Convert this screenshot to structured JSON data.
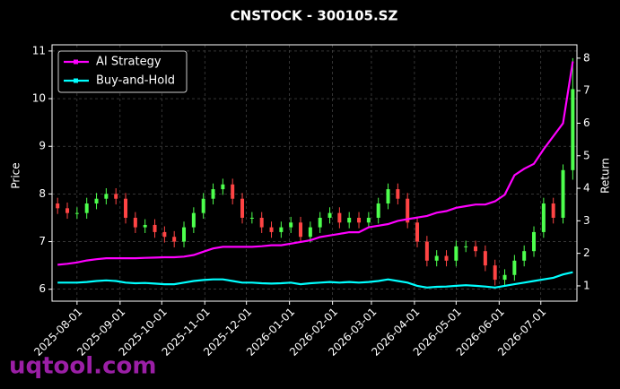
{
  "chart_data": {
    "type": "candlestick_returns",
    "title": "CNSTOCK - 300105.SZ",
    "ylabel": "Price",
    "y2label": "Return",
    "watermark": "uqtool.com",
    "x": [
      "2025-07-18",
      "2025-07-25",
      "2025-08-01",
      "2025-08-08",
      "2025-08-15",
      "2025-08-22",
      "2025-08-29",
      "2025-09-05",
      "2025-09-12",
      "2025-09-19",
      "2025-09-26",
      "2025-10-03",
      "2025-10-10",
      "2025-10-17",
      "2025-10-24",
      "2025-10-31",
      "2025-11-07",
      "2025-11-14",
      "2025-11-21",
      "2025-11-28",
      "2025-12-05",
      "2025-12-12",
      "2025-12-19",
      "2025-12-26",
      "2026-01-02",
      "2026-01-09",
      "2026-01-16",
      "2026-01-23",
      "2026-01-30",
      "2026-02-06",
      "2026-02-13",
      "2026-02-20",
      "2026-02-27",
      "2026-03-06",
      "2026-03-13",
      "2026-03-20",
      "2026-03-27",
      "2026-04-03",
      "2026-04-10",
      "2026-04-17",
      "2026-04-24",
      "2026-05-01",
      "2026-05-08",
      "2026-05-15",
      "2026-05-22",
      "2026-05-29",
      "2026-06-05",
      "2026-06-12",
      "2026-06-19",
      "2026-06-26",
      "2026-07-03",
      "2026-07-10",
      "2026-07-17",
      "2026-07-24"
    ],
    "open": [
      7.8,
      7.7,
      7.6,
      7.6,
      7.8,
      7.9,
      8.0,
      7.9,
      7.5,
      7.3,
      7.35,
      7.2,
      7.1,
      7.0,
      7.3,
      7.6,
      7.9,
      8.1,
      8.2,
      7.9,
      7.5,
      7.5,
      7.3,
      7.2,
      7.3,
      7.4,
      7.1,
      7.3,
      7.5,
      7.6,
      7.4,
      7.5,
      7.4,
      7.5,
      7.8,
      8.1,
      7.9,
      7.4,
      7.0,
      6.6,
      6.7,
      6.6,
      6.9,
      6.9,
      6.8,
      6.5,
      6.2,
      6.3,
      6.6,
      6.8,
      7.2,
      7.8,
      7.5,
      8.5
    ],
    "high": [
      7.92,
      7.82,
      7.72,
      7.92,
      8.02,
      8.12,
      8.12,
      8.02,
      7.62,
      7.47,
      7.47,
      7.32,
      7.22,
      7.42,
      7.72,
      8.02,
      8.22,
      8.32,
      8.32,
      8.02,
      7.62,
      7.62,
      7.42,
      7.42,
      7.52,
      7.52,
      7.42,
      7.62,
      7.72,
      7.72,
      7.62,
      7.62,
      7.62,
      7.92,
      8.22,
      8.22,
      8.02,
      7.52,
      7.12,
      6.82,
      6.82,
      7.02,
      7.02,
      7.02,
      6.92,
      6.62,
      6.42,
      6.72,
      6.92,
      7.32,
      7.92,
      7.92,
      8.62,
      10.85
    ],
    "low": [
      7.58,
      7.48,
      7.48,
      7.48,
      7.68,
      7.78,
      7.78,
      7.38,
      7.18,
      7.18,
      7.08,
      6.98,
      6.88,
      6.88,
      7.18,
      7.48,
      7.78,
      7.98,
      7.78,
      7.38,
      7.38,
      7.18,
      7.08,
      7.08,
      7.18,
      6.98,
      6.98,
      7.18,
      7.38,
      7.28,
      7.28,
      7.28,
      7.28,
      7.38,
      7.68,
      7.78,
      7.28,
      6.88,
      6.48,
      6.48,
      6.48,
      6.48,
      6.78,
      6.68,
      6.38,
      6.08,
      6.08,
      6.18,
      6.48,
      6.68,
      7.08,
      7.38,
      7.38,
      8.3
    ],
    "close": [
      7.7,
      7.6,
      7.6,
      7.8,
      7.9,
      8.0,
      7.9,
      7.5,
      7.3,
      7.35,
      7.2,
      7.1,
      7.0,
      7.3,
      7.6,
      7.9,
      8.1,
      8.2,
      7.9,
      7.5,
      7.5,
      7.3,
      7.2,
      7.3,
      7.4,
      7.1,
      7.3,
      7.5,
      7.6,
      7.4,
      7.5,
      7.4,
      7.5,
      7.8,
      8.1,
      7.9,
      7.4,
      7.0,
      6.6,
      6.7,
      6.6,
      6.9,
      6.9,
      6.8,
      6.5,
      6.2,
      6.3,
      6.6,
      6.8,
      7.2,
      7.8,
      7.5,
      8.5,
      10.2
    ],
    "up_color": "#4dff4d",
    "down_color": "#ff4444",
    "series": [
      {
        "name": "AI Strategy",
        "color": "#ff00ff",
        "axis": "y2",
        "values": [
          1.65,
          1.68,
          1.72,
          1.78,
          1.82,
          1.85,
          1.85,
          1.85,
          1.85,
          1.86,
          1.87,
          1.88,
          1.88,
          1.9,
          1.95,
          2.05,
          2.15,
          2.2,
          2.2,
          2.2,
          2.2,
          2.22,
          2.25,
          2.25,
          2.3,
          2.35,
          2.4,
          2.5,
          2.55,
          2.6,
          2.65,
          2.65,
          2.8,
          2.85,
          2.9,
          3.0,
          3.05,
          3.1,
          3.15,
          3.25,
          3.3,
          3.4,
          3.45,
          3.5,
          3.5,
          3.6,
          3.8,
          4.4,
          4.6,
          4.75,
          5.2,
          5.6,
          6.0,
          7.9
        ]
      },
      {
        "name": "Buy-and-Hold",
        "color": "#00ffff",
        "axis": "y2",
        "values": [
          1.1,
          1.1,
          1.1,
          1.12,
          1.15,
          1.17,
          1.15,
          1.1,
          1.08,
          1.09,
          1.07,
          1.05,
          1.05,
          1.1,
          1.15,
          1.18,
          1.2,
          1.2,
          1.15,
          1.1,
          1.1,
          1.08,
          1.07,
          1.08,
          1.1,
          1.05,
          1.08,
          1.1,
          1.12,
          1.1,
          1.12,
          1.1,
          1.12,
          1.15,
          1.2,
          1.15,
          1.1,
          1.0,
          0.95,
          0.97,
          0.98,
          1.0,
          1.02,
          1.0,
          0.98,
          0.95,
          1.0,
          1.05,
          1.1,
          1.15,
          1.2,
          1.25,
          1.35,
          1.42
        ]
      }
    ],
    "xlim": [
      "2025-07-14",
      "2026-07-27"
    ],
    "xticks": [
      "2025-08-01",
      "2025-09-01",
      "2025-10-01",
      "2025-11-01",
      "2025-12-01",
      "2026-01-01",
      "2026-02-01",
      "2026-03-01",
      "2026-04-01",
      "2026-05-01",
      "2026-06-01",
      "2026-07-01"
    ],
    "ylim": [
      5.75,
      11.13
    ],
    "yticks": [
      6,
      7,
      8,
      9,
      10,
      11
    ],
    "y2lim": [
      0.53,
      8.41
    ],
    "y2ticks": [
      1,
      2,
      3,
      4,
      5,
      6,
      7,
      8
    ],
    "grid": true,
    "legend": "upper left"
  }
}
